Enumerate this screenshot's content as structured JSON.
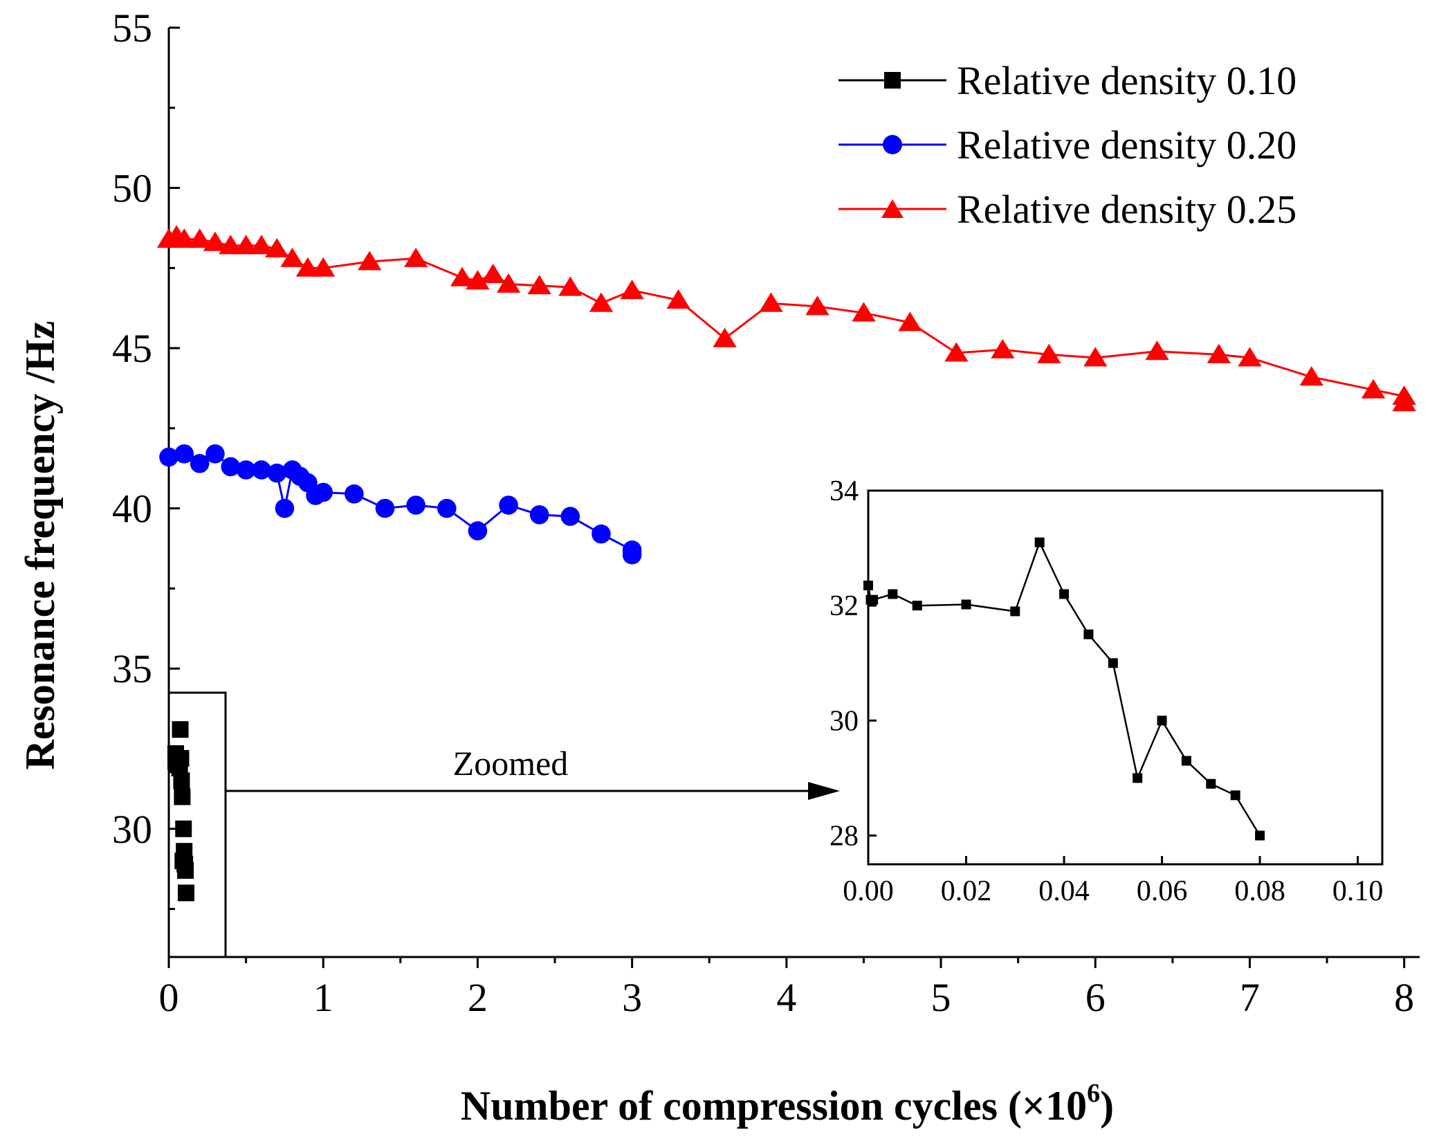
{
  "chart_data": {
    "type": "line",
    "xlabel_main": "Number of compression cycles (×10",
    "xlabel_exp": "6",
    "xlabel_close": ")",
    "ylabel": "Resonance frequency /Hz",
    "xlim": [
      0,
      8.1
    ],
    "ylim": [
      26,
      55
    ],
    "x_ticks": [
      "0",
      "1",
      "2",
      "3",
      "4",
      "5",
      "6",
      "7",
      "8"
    ],
    "y_ticks": [
      "30",
      "35",
      "40",
      "45",
      "50",
      "55"
    ],
    "legend_position": "top-right",
    "annotation": "Zoomed",
    "series": [
      {
        "name": "Relative density 0.10",
        "color": "#000000",
        "marker": "square",
        "x": [
          0.0,
          0.0005,
          0.001,
          0.005,
          0.01,
          0.02,
          0.03,
          0.035,
          0.04,
          0.045,
          0.05,
          0.055,
          0.06,
          0.065,
          0.07,
          0.075,
          0.08
        ],
        "y": [
          32.35,
          32.1,
          32.1,
          32.2,
          32.0,
          32.02,
          31.9,
          33.1,
          32.2,
          31.5,
          31.0,
          29.0,
          30.0,
          29.3,
          28.9,
          28.7,
          28.0
        ]
      },
      {
        "name": "Relative density 0.20",
        "color": "#0000ff",
        "marker": "circle",
        "x": [
          0.0,
          0.1,
          0.2,
          0.3,
          0.4,
          0.5,
          0.6,
          0.7,
          0.75,
          0.8,
          0.85,
          0.9,
          0.95,
          1.0,
          1.2,
          1.4,
          1.6,
          1.8,
          2.0,
          2.2,
          2.4,
          2.6,
          2.8,
          3.0,
          3.0
        ],
        "y": [
          41.6,
          41.7,
          41.4,
          41.7,
          41.3,
          41.2,
          41.2,
          41.1,
          40.0,
          41.2,
          41.0,
          40.8,
          40.4,
          40.5,
          40.45,
          40.0,
          40.1,
          40.0,
          39.3,
          40.1,
          39.8,
          39.75,
          39.2,
          38.7,
          38.55
        ]
      },
      {
        "name": "Relative density 0.25",
        "color": "#ff0000",
        "marker": "triangle",
        "x": [
          0.0,
          0.05,
          0.1,
          0.2,
          0.3,
          0.4,
          0.5,
          0.6,
          0.7,
          0.8,
          0.9,
          1.0,
          1.3,
          1.6,
          1.9,
          2.0,
          2.1,
          2.2,
          2.4,
          2.6,
          2.8,
          3.0,
          3.3,
          3.6,
          3.9,
          4.2,
          4.5,
          4.8,
          5.1,
          5.4,
          5.7,
          6.0,
          6.4,
          6.8,
          7.0,
          7.4,
          7.8,
          8.0,
          8.0
        ],
        "y": [
          48.4,
          48.5,
          48.4,
          48.4,
          48.3,
          48.2,
          48.2,
          48.2,
          48.1,
          47.8,
          47.5,
          47.5,
          47.7,
          47.8,
          47.2,
          47.1,
          47.3,
          47.0,
          46.95,
          46.9,
          46.4,
          46.8,
          46.5,
          45.3,
          46.4,
          46.3,
          46.1,
          45.8,
          44.85,
          44.95,
          44.8,
          44.7,
          44.9,
          44.8,
          44.7,
          44.1,
          43.7,
          43.5,
          43.3
        ]
      }
    ],
    "inset": {
      "xlim": [
        0,
        0.105
      ],
      "ylim": [
        27.5,
        34
      ],
      "x_ticks": [
        "0.00",
        "0.02",
        "0.04",
        "0.06",
        "0.08",
        "0.10"
      ],
      "y_ticks": [
        "28",
        "30",
        "32",
        "34"
      ],
      "series_ref": "Relative density 0.10"
    }
  }
}
